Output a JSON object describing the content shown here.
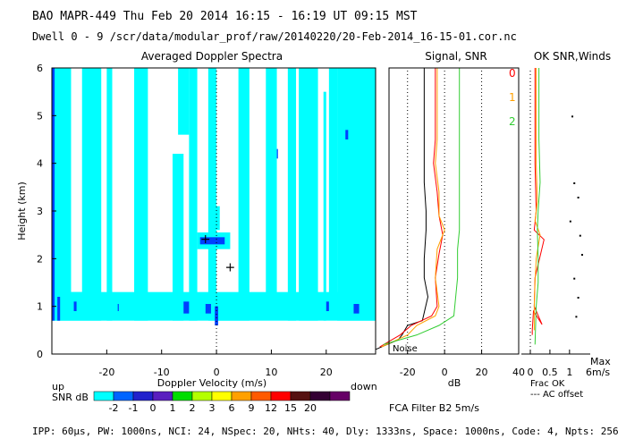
{
  "header": {
    "line1": "BAO  MAPR-449  Thu Feb 20 2014 16:15 - 16:19 UT 09:15 MST",
    "line2": "Dwell  0 - 9   /scr/data/modular_prof/raw/20140220/20-Feb-2014_16-15-01.cor.nc"
  },
  "footer": {
    "params": "IPP: 60μs, PW: 1000ns, NCI: 24, NSpec: 20, NHts: 40, Dly: 1333ns, Space: 1000ns, Code: 4, Npts: 256"
  },
  "colors": {
    "cyan": "#00ffff",
    "blue": "#0040ff",
    "black": "#000000",
    "red": "#ff0000",
    "orange": "#ffa000",
    "green": "#32cd32"
  },
  "chart_data": [
    {
      "type": "heatmap",
      "title": "Averaged Doppler Spectra",
      "xlabel": "Doppler Velocity (m/s)",
      "ylabel": "Height (km)",
      "xlim": [
        -30,
        29
      ],
      "ylim": [
        0,
        6
      ],
      "xticks": [
        -20,
        -10,
        0,
        10,
        20
      ],
      "yticks": [
        0,
        1,
        2,
        3,
        4,
        5,
        6
      ],
      "x_direction_left": "up",
      "x_direction_right": "down",
      "markers": [
        {
          "x": -2,
          "y": 2.42,
          "symbol": "+"
        },
        {
          "x": 2.5,
          "y": 1.83,
          "symbol": "+"
        }
      ],
      "colorbar": {
        "label": "SNR dB",
        "levels": [
          "-2",
          "-1",
          "0",
          "1",
          "2",
          "3",
          "6",
          "9",
          "12",
          "15",
          "20"
        ],
        "colors": [
          "#00ffff",
          "#0064ff",
          "#2222cc",
          "#5a1fbf",
          "#00dd00",
          "#b4ff00",
          "#ffff00",
          "#ffa000",
          "#ff5a00",
          "#ff0000",
          "#551111",
          "#330033",
          "#660066"
        ]
      }
    },
    {
      "type": "line",
      "title": "Signal, SNR",
      "xlabel": "dB",
      "xlim": [
        -30,
        40
      ],
      "xticks": [
        -20,
        0,
        20,
        40
      ],
      "ylim": [
        0,
        6
      ],
      "noise_label": "Noise",
      "legend": [
        "0",
        "1",
        "2"
      ],
      "series": [
        {
          "name": "noise",
          "x": [
            -37,
            -25,
            -23,
            -20,
            -12,
            -9,
            -11,
            -11,
            -10,
            -10,
            -11,
            -11,
            -11,
            -11
          ],
          "y": [
            0.1,
            0.3,
            0.4,
            0.6,
            0.7,
            1.2,
            1.6,
            2.0,
            2.6,
            3.0,
            3.6,
            4.5,
            5.5,
            6.0
          ]
        },
        {
          "name": "0",
          "x": [
            -35,
            -24,
            -18,
            -7,
            -4,
            -5,
            -3,
            -1,
            -3,
            -4,
            -6,
            -5,
            -5,
            -5
          ],
          "y": [
            0.15,
            0.4,
            0.6,
            0.8,
            1.0,
            1.6,
            2.1,
            2.5,
            2.9,
            3.4,
            4.0,
            4.5,
            5.5,
            6.0
          ]
        },
        {
          "name": "1",
          "x": [
            -34,
            -20,
            -15,
            -5,
            -3,
            -5,
            -4,
            0,
            -3,
            -3,
            -5,
            -4,
            -4,
            -4
          ],
          "y": [
            0.15,
            0.4,
            0.6,
            0.8,
            1.0,
            1.6,
            2.2,
            2.6,
            2.9,
            3.4,
            4.0,
            4.5,
            5.5,
            6.0
          ]
        },
        {
          "name": "2",
          "x": [
            -33,
            -15,
            -3,
            5,
            6,
            7,
            7,
            8,
            8,
            8,
            8,
            8,
            8,
            8
          ],
          "y": [
            0.2,
            0.4,
            0.6,
            0.8,
            1.2,
            1.6,
            2.2,
            2.6,
            3.2,
            3.8,
            4.2,
            4.8,
            5.4,
            6.0
          ]
        }
      ]
    },
    {
      "type": "line",
      "title": "OK  SNR,Winds",
      "xticks": [
        0,
        0.5,
        1
      ],
      "xlim": [
        0,
        1.3
      ],
      "ylim": [
        0,
        6
      ],
      "xlabel": "Frac OK",
      "annotation": "--- AC offset",
      "scale_label": "Max",
      "scale_value": "6m/s",
      "series": [
        {
          "name": "0",
          "x": [
            0.05,
            0.05,
            0.08,
            0.3,
            0.1,
            0.12,
            0.35,
            0.1,
            0.15,
            0.12,
            0.12,
            0.12
          ],
          "y": [
            0.4,
            0.5,
            0.9,
            0.62,
            1.0,
            1.6,
            2.4,
            2.6,
            3.0,
            4.0,
            5.0,
            6.0
          ]
        },
        {
          "name": "1",
          "x": [
            0.1,
            0.1,
            0.12,
            0.15,
            0.25,
            0.12,
            0.18,
            0.15,
            0.15,
            0.15,
            0.15
          ],
          "y": [
            0.5,
            1.0,
            1.5,
            2.0,
            2.5,
            2.8,
            3.2,
            4.0,
            4.8,
            5.5,
            6.0
          ]
        },
        {
          "name": "2",
          "x": [
            0.12,
            0.15,
            0.2,
            0.2,
            0.18,
            0.2,
            0.25,
            0.22,
            0.22,
            0.22
          ],
          "y": [
            0.2,
            1.0,
            1.5,
            2.0,
            2.6,
            3.0,
            3.6,
            4.5,
            5.2,
            6.0
          ]
        }
      ]
    }
  ],
  "footer_labels": {
    "fca": "FCA Filter B2  5m/s"
  }
}
